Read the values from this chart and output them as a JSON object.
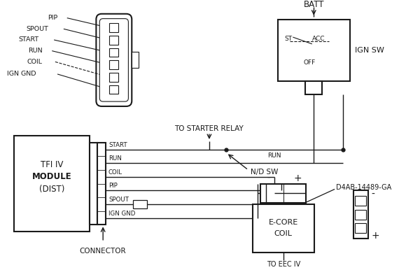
{
  "bg_color": "#ffffff",
  "line_color": "#1a1a1a",
  "wire_labels_left": [
    "PIP",
    "SPOUT",
    "START",
    "RUN",
    "COIL",
    "IGN GND"
  ],
  "wire_labels_right": [
    "START",
    "RUN",
    "COIL",
    "PIP",
    "SPOUT",
    "IGN GND"
  ],
  "module_text": [
    "TFI IV",
    "MODULE",
    "(DIST)"
  ],
  "connector_label": "CONNECTOR",
  "ign_sw_label": "IGN SW",
  "batt_label": "BATT",
  "nd_sw_label": "N/D SW",
  "to_starter_relay": "TO STARTER RELAY",
  "to_eec_label": "TO EEC IV",
  "ecore_label": [
    "E-CORE",
    "COIL"
  ],
  "d4ab_label": "D4AB-14489-GA",
  "run_label": "RUN",
  "st_label": "ST",
  "acc_label": "ACC",
  "off_label": "OFF"
}
